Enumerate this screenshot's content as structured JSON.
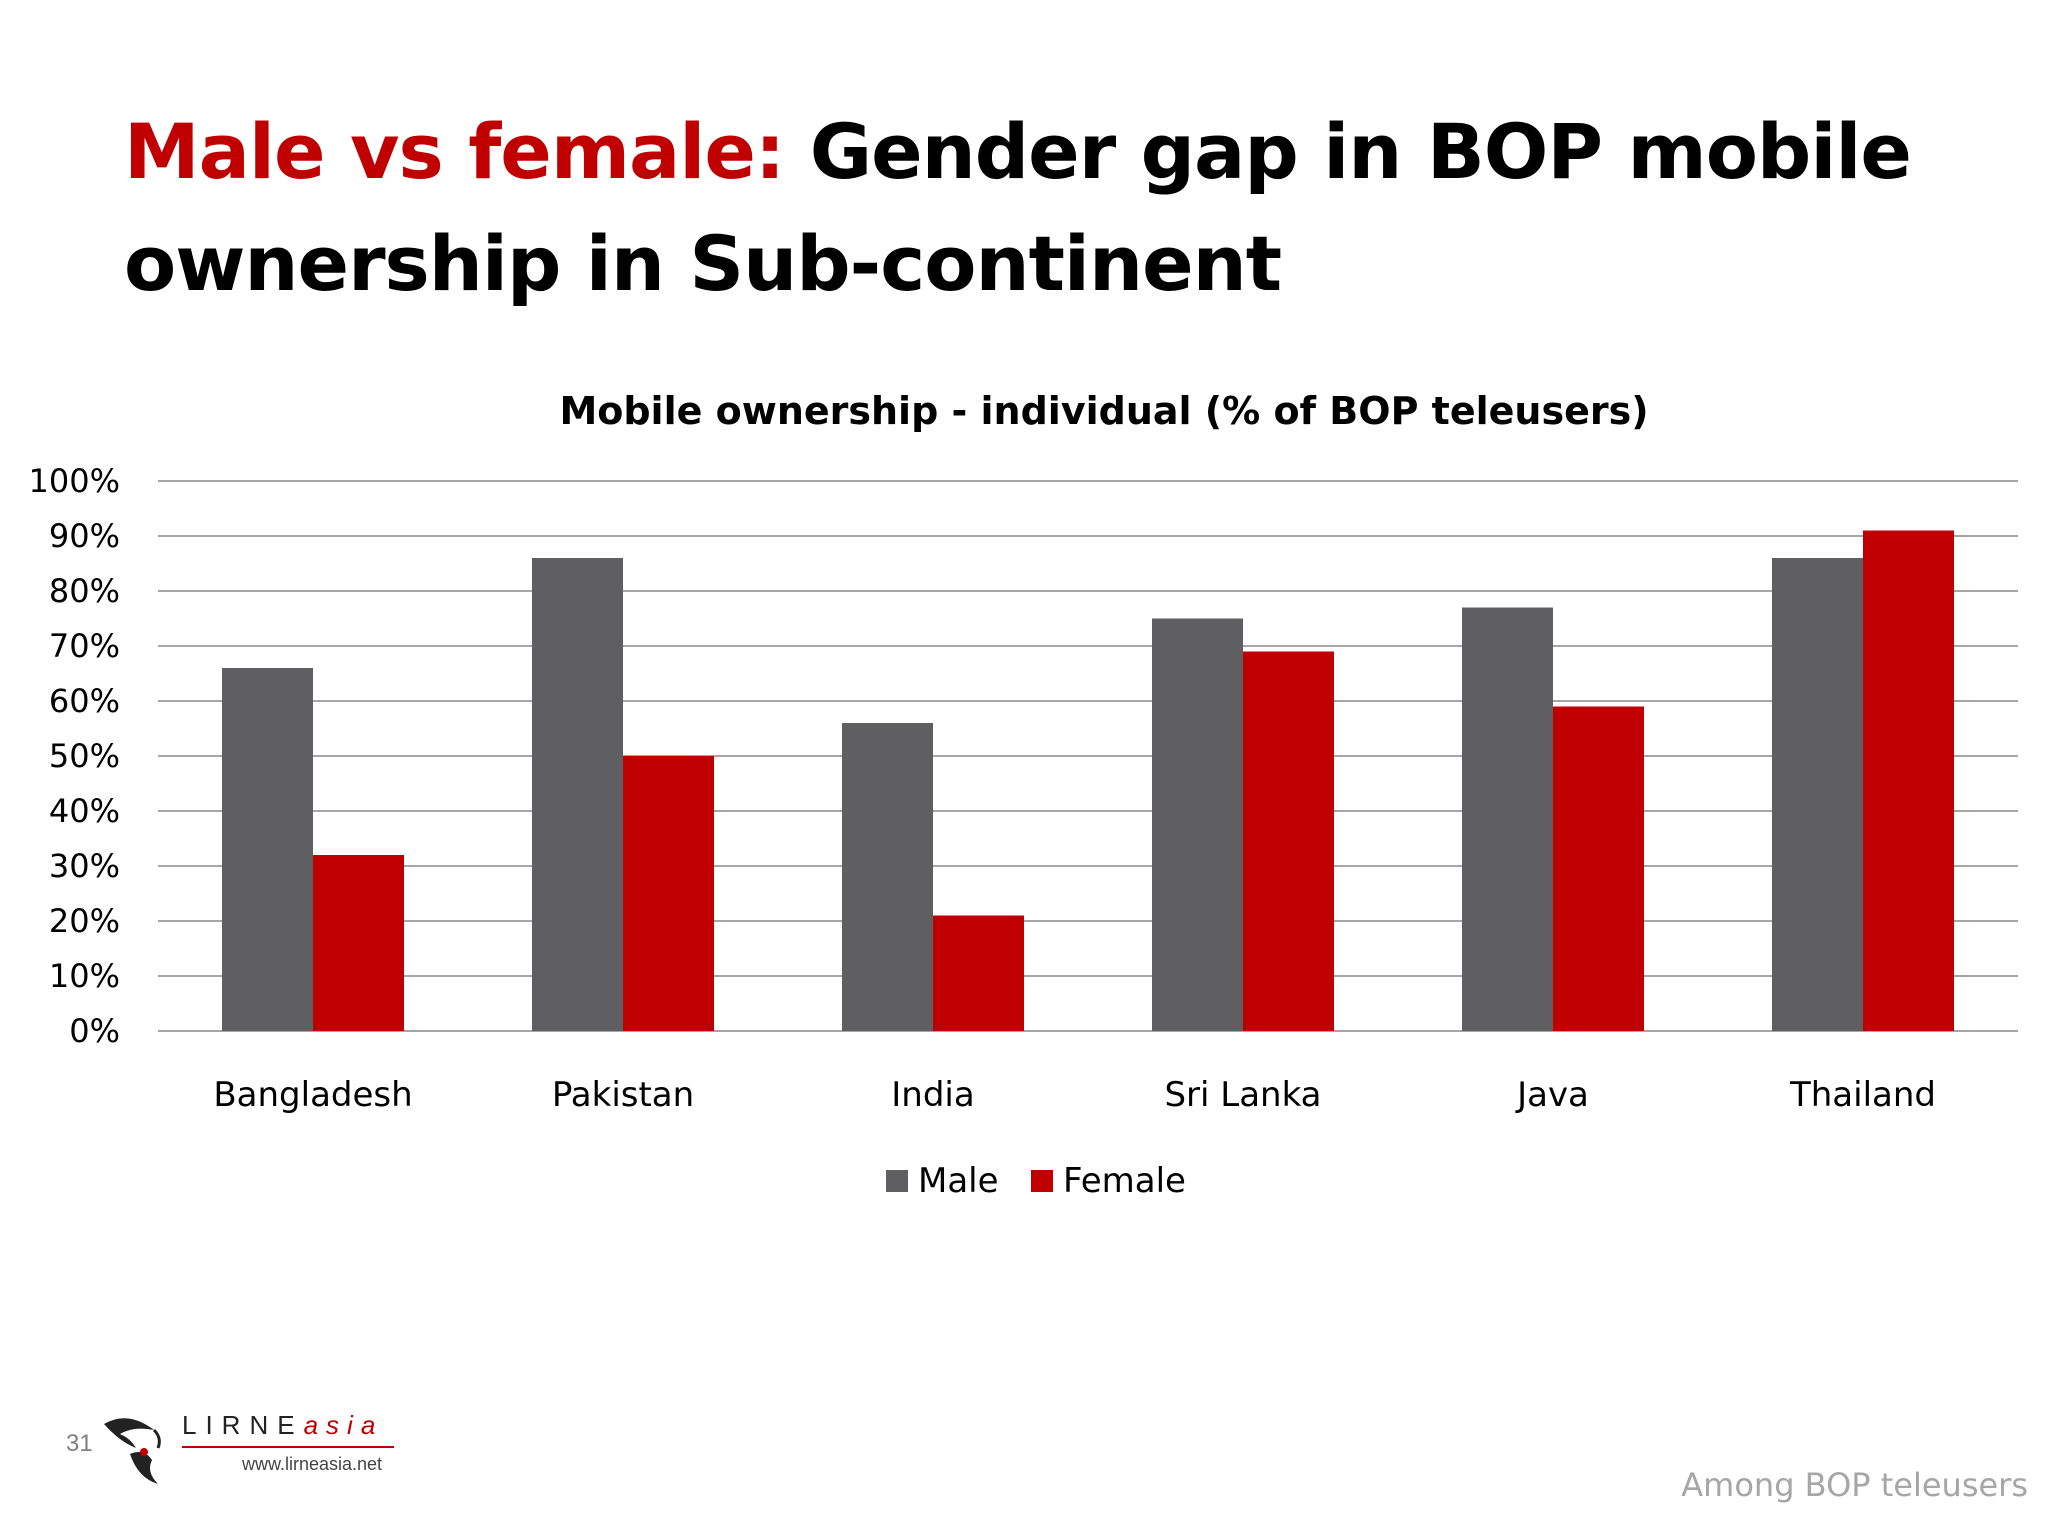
{
  "slide": {
    "title_accent": "Male vs female:",
    "title_rest": " Gender gap in BOP mobile ownership in Sub-continent",
    "slide_number": "31",
    "footnote": "Among BOP teleusers",
    "logo": {
      "word_main": "LIRNE",
      "word_italic": "asia",
      "url": "www.lirneasia.net"
    }
  },
  "colors": {
    "accent": "#c00000",
    "male": "#5f5e60",
    "female": "#c00000",
    "grid": "#a6a6a6"
  },
  "chart_data": {
    "type": "bar",
    "title": "Mobile ownership - individual (% of BOP teleusers)",
    "xlabel": "",
    "ylabel": "",
    "categories": [
      "Bangladesh",
      "Pakistan",
      "India",
      "Sri Lanka",
      "Java",
      "Thailand"
    ],
    "series": [
      {
        "name": "Male",
        "values": [
          66,
          86,
          56,
          75,
          77,
          86
        ]
      },
      {
        "name": "Female",
        "values": [
          32,
          50,
          21,
          69,
          59,
          91
        ]
      }
    ],
    "ylim": [
      0,
      100
    ],
    "yticks": [
      "0%",
      "10%",
      "20%",
      "30%",
      "40%",
      "50%",
      "60%",
      "70%",
      "80%",
      "90%",
      "100%"
    ],
    "grid": true,
    "legend": "bottom"
  }
}
